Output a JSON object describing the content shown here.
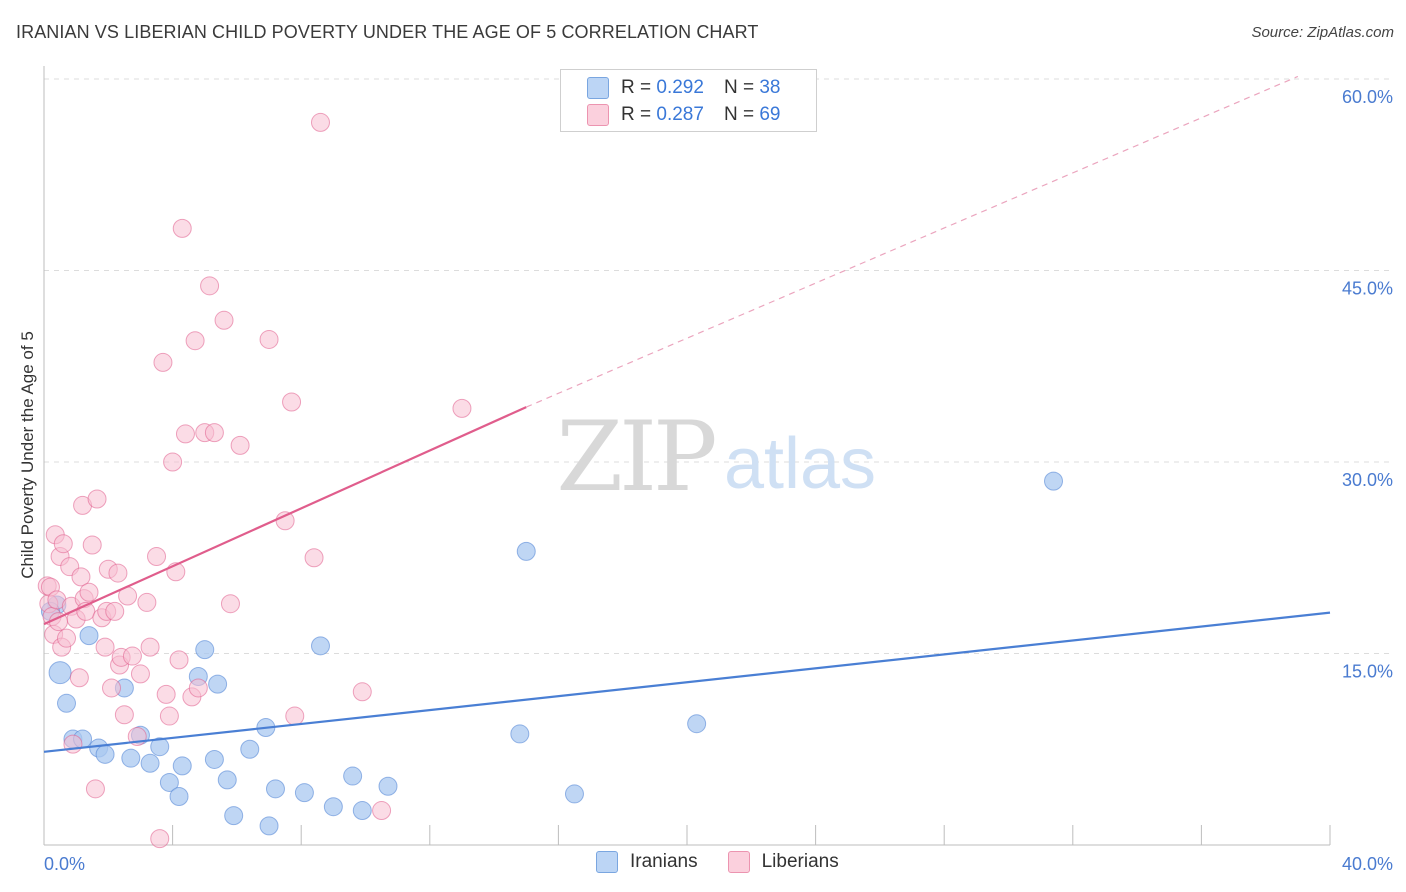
{
  "title": "IRANIAN VS LIBERIAN CHILD POVERTY UNDER THE AGE OF 5 CORRELATION CHART",
  "source": "Source: ZipAtlas.com",
  "watermark": {
    "zip": "ZIP",
    "atlas": "atlas"
  },
  "legend": {
    "r_label": "R =",
    "n_label": "N =",
    "rows": [
      {
        "r": "0.292",
        "n": "38",
        "color": "#a9c8f0",
        "border": "#7aa6e0"
      },
      {
        "r": "0.287",
        "n": "69",
        "color": "#f8c0d2",
        "border": "#ec94b0"
      }
    ]
  },
  "bottom_legend": [
    {
      "label": "Iranians",
      "color": "#bcd5f5",
      "border": "#7aa6e0"
    },
    {
      "label": "Liberians",
      "color": "#fbd0dd",
      "border": "#ec94b0"
    }
  ],
  "chart_data": {
    "type": "scatter",
    "xlabel": "",
    "ylabel": "Child Poverty Under the Age of 5",
    "xlim": [
      0,
      40
    ],
    "ylim": [
      0,
      60
    ],
    "x_tick_labels": [
      "0.0%",
      "40.0%"
    ],
    "y_ticks": [
      15,
      30,
      45,
      60
    ],
    "y_tick_labels": [
      "15.0%",
      "30.0%",
      "45.0%",
      "60.0%"
    ],
    "series": [
      {
        "name": "Iranians",
        "color": "#4a7fd4",
        "fill": "#a9c8f0",
        "points": [
          [
            0.4,
            18.8
          ],
          [
            0.5,
            13.5
          ],
          [
            0.7,
            11.1
          ],
          [
            0.9,
            8.3
          ],
          [
            1.2,
            8.3
          ],
          [
            1.4,
            16.4
          ],
          [
            1.7,
            7.6
          ],
          [
            1.9,
            7.1
          ],
          [
            2.5,
            12.3
          ],
          [
            2.7,
            6.8
          ],
          [
            3.0,
            8.6
          ],
          [
            3.3,
            6.4
          ],
          [
            3.6,
            7.7
          ],
          [
            3.9,
            4.9
          ],
          [
            4.2,
            3.8
          ],
          [
            4.3,
            6.2
          ],
          [
            4.8,
            13.2
          ],
          [
            5.0,
            15.3
          ],
          [
            5.3,
            6.7
          ],
          [
            5.4,
            12.6
          ],
          [
            5.7,
            5.1
          ],
          [
            5.9,
            2.3
          ],
          [
            6.4,
            7.5
          ],
          [
            6.9,
            9.2
          ],
          [
            7.0,
            1.5
          ],
          [
            7.2,
            4.4
          ],
          [
            8.1,
            4.1
          ],
          [
            8.6,
            15.6
          ],
          [
            9.0,
            3.0
          ],
          [
            9.6,
            5.4
          ],
          [
            9.9,
            2.7
          ],
          [
            10.7,
            4.6
          ],
          [
            14.8,
            8.7
          ],
          [
            15.0,
            23.0
          ],
          [
            16.5,
            4.0
          ],
          [
            20.3,
            9.5
          ],
          [
            31.4,
            28.5
          ],
          [
            0.2,
            18.3
          ]
        ],
        "trend": {
          "x": [
            0,
            40
          ],
          "y": [
            7.3,
            18.2
          ]
        }
      },
      {
        "name": "Liberians",
        "color": "#e05d8c",
        "fill": "#f8c0d2",
        "points": [
          [
            0.1,
            20.3
          ],
          [
            0.15,
            18.9
          ],
          [
            0.2,
            20.2
          ],
          [
            0.25,
            17.9
          ],
          [
            0.3,
            16.5
          ],
          [
            0.35,
            24.3
          ],
          [
            0.4,
            19.2
          ],
          [
            0.5,
            22.6
          ],
          [
            0.55,
            15.5
          ],
          [
            0.6,
            23.6
          ],
          [
            0.7,
            16.2
          ],
          [
            0.8,
            21.8
          ],
          [
            0.85,
            18.7
          ],
          [
            0.9,
            7.9
          ],
          [
            1.0,
            17.7
          ],
          [
            1.1,
            13.1
          ],
          [
            1.15,
            21.0
          ],
          [
            1.2,
            26.6
          ],
          [
            1.25,
            19.3
          ],
          [
            1.3,
            18.3
          ],
          [
            1.4,
            19.8
          ],
          [
            1.5,
            23.5
          ],
          [
            1.6,
            4.4
          ],
          [
            1.65,
            27.1
          ],
          [
            1.8,
            17.8
          ],
          [
            1.9,
            15.5
          ],
          [
            1.95,
            18.3
          ],
          [
            2.0,
            21.6
          ],
          [
            2.1,
            12.3
          ],
          [
            2.2,
            18.3
          ],
          [
            2.3,
            21.3
          ],
          [
            2.35,
            14.1
          ],
          [
            2.4,
            14.7
          ],
          [
            2.5,
            10.2
          ],
          [
            2.6,
            19.5
          ],
          [
            2.75,
            14.8
          ],
          [
            2.9,
            8.5
          ],
          [
            3.0,
            13.4
          ],
          [
            3.2,
            19.0
          ],
          [
            3.3,
            15.5
          ],
          [
            3.5,
            22.6
          ],
          [
            3.6,
            0.5
          ],
          [
            3.7,
            37.8
          ],
          [
            3.8,
            11.8
          ],
          [
            3.9,
            10.1
          ],
          [
            4.0,
            30.0
          ],
          [
            4.1,
            21.4
          ],
          [
            4.2,
            14.5
          ],
          [
            4.3,
            48.3
          ],
          [
            4.4,
            32.2
          ],
          [
            4.6,
            11.6
          ],
          [
            4.7,
            39.5
          ],
          [
            4.8,
            12.3
          ],
          [
            5.0,
            32.3
          ],
          [
            5.15,
            43.8
          ],
          [
            5.3,
            32.3
          ],
          [
            5.6,
            41.1
          ],
          [
            5.8,
            18.9
          ],
          [
            6.1,
            31.3
          ],
          [
            7.0,
            39.6
          ],
          [
            7.5,
            25.4
          ],
          [
            7.7,
            34.7
          ],
          [
            7.8,
            10.1
          ],
          [
            8.4,
            22.5
          ],
          [
            8.6,
            56.6
          ],
          [
            9.9,
            12.0
          ],
          [
            10.5,
            2.7
          ],
          [
            13.0,
            34.2
          ],
          [
            0.45,
            17.5
          ]
        ],
        "trend": {
          "x": [
            0,
            15
          ],
          "y": [
            17.3,
            34.3
          ]
        },
        "trend_dashed": {
          "x": [
            15,
            39
          ],
          "y": [
            34.3,
            60.2
          ]
        }
      }
    ]
  }
}
